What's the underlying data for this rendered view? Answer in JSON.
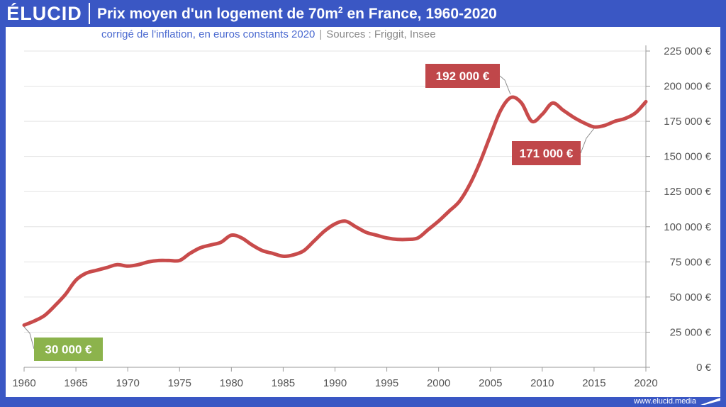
{
  "header": {
    "logo": "ÉLUCID",
    "title_pre": "Prix moyen d'un logement de 70m",
    "title_sup": "2",
    "title_post": " en France, 1960-2020"
  },
  "subtitle": {
    "text": "corrigé de l'inflation, en euros constants 2020",
    "separator": "|",
    "sources": "Sources : Friggit, Insee"
  },
  "footer": {
    "site": "www.elucid.media"
  },
  "colors": {
    "brand": "#3a57c4",
    "line": "#c84b4b",
    "label_red": "#c0474a",
    "label_green": "#8cb34c"
  },
  "chart_data": {
    "type": "line",
    "title": "Prix moyen d'un logement de 70m² en France, 1960-2020",
    "subtitle": "corrigé de l'inflation, en euros constants 2020",
    "xlim": [
      1960,
      2020
    ],
    "ylim": [
      0,
      225000
    ],
    "x_ticks": [
      1960,
      1965,
      1970,
      1975,
      1980,
      1985,
      1990,
      1995,
      2000,
      2005,
      2010,
      2015,
      2020
    ],
    "x_tick_labels": [
      "1960",
      "1965",
      "1970",
      "1975",
      "1980",
      "1985",
      "1990",
      "1995",
      "2000",
      "2005",
      "2010",
      "2015",
      "2020"
    ],
    "y_ticks": [
      0,
      25000,
      50000,
      75000,
      100000,
      125000,
      150000,
      175000,
      200000,
      225000
    ],
    "y_tick_labels": [
      "0 €",
      "25 000 €",
      "50 000 €",
      "75 000 €",
      "100 000 €",
      "125 000 €",
      "150 000 €",
      "175 000 €",
      "200 000 €",
      "225 000 €"
    ],
    "grid": true,
    "series": [
      {
        "x": [
          1960,
          1961,
          1962,
          1963,
          1964,
          1965,
          1966,
          1967,
          1968,
          1969,
          1970,
          1971,
          1972,
          1973,
          1974,
          1975,
          1976,
          1977,
          1978,
          1979,
          1980,
          1981,
          1982,
          1983,
          1984,
          1985,
          1986,
          1987,
          1988,
          1989,
          1990,
          1991,
          1992,
          1993,
          1994,
          1995,
          1996,
          1997,
          1998,
          1999,
          2000,
          2001,
          2002,
          2003,
          2004,
          2005,
          2006,
          2007,
          2008,
          2009,
          2010,
          2011,
          2012,
          2013,
          2014,
          2015,
          2016,
          2017,
          2018,
          2019,
          2020
        ],
        "y": [
          30000,
          33000,
          37000,
          44000,
          52000,
          62000,
          67000,
          69000,
          71000,
          73000,
          72000,
          73000,
          75000,
          76000,
          76000,
          76000,
          81000,
          85000,
          87000,
          89000,
          94000,
          92000,
          87000,
          83000,
          81000,
          79000,
          80000,
          83000,
          90000,
          97000,
          102000,
          104000,
          100000,
          96000,
          94000,
          92000,
          91000,
          91000,
          92000,
          98000,
          104000,
          111000,
          118000,
          130000,
          146000,
          165000,
          183000,
          192000,
          188000,
          175000,
          180000,
          188000,
          183000,
          178000,
          174000,
          171000,
          172000,
          175000,
          177000,
          181000,
          189000
        ]
      }
    ],
    "annotations": [
      {
        "x": 1960,
        "y": 30000,
        "label": "30 000 €"
      },
      {
        "x": 2007,
        "y": 192000,
        "label": "192 000 €"
      },
      {
        "x": 2015,
        "y": 171000,
        "label": "171 000 €"
      }
    ]
  }
}
